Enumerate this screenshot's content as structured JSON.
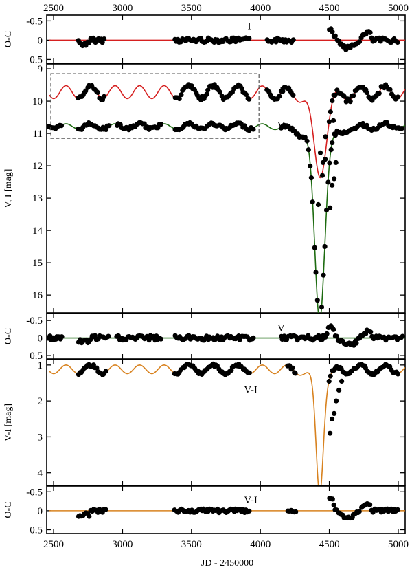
{
  "chart_data": {
    "type": "scatter",
    "colors": {
      "I": "#d62020",
      "V": "#1d6b10",
      "VI": "#d8821f",
      "points": "#000000"
    },
    "xaxis": {
      "label": "JD - 2450000",
      "range": [
        2450,
        5050
      ],
      "ticks": [
        2500,
        3000,
        3500,
        4000,
        4500,
        5000
      ],
      "tick_labels": [
        "2500",
        "3000",
        "3500",
        "4000",
        "4500",
        "5000"
      ]
    },
    "panels": [
      {
        "id": "oc_i",
        "ylabel": "O-C",
        "ylim": [
          -0.65,
          0.6
        ],
        "ticks": [
          -0.5,
          0,
          0.5
        ],
        "tick_labels": [
          "-0.5",
          "0",
          "0.5"
        ],
        "series_label": "I",
        "series_label_pos": [
          3920,
          -0.28
        ]
      },
      {
        "id": "main",
        "ylabel": "V, I [mag]",
        "ylim": [
          8.85,
          16.55
        ],
        "ticks": [
          9,
          10,
          11,
          12,
          13,
          14,
          15,
          16
        ],
        "tick_labels": [
          "9",
          "10",
          "11",
          "12",
          "13",
          "14",
          "15",
          "16"
        ],
        "series_labels": [
          {
            "text": "I",
            "pos": [
              4150,
              9.75
            ]
          },
          {
            "text": "V",
            "pos": [
              4150,
              10.85
            ]
          }
        ],
        "highlight_box": {
          "x": [
            2480,
            3990
          ],
          "y": [
            9.15,
            11.15
          ]
        }
      },
      {
        "id": "oc_v",
        "ylabel": "O-C",
        "ylim": [
          -0.7,
          0.6
        ],
        "ticks": [
          -0.5,
          0,
          0.5
        ],
        "tick_labels": [
          "-0.5",
          "0",
          "0.5"
        ],
        "series_label": "V",
        "series_label_pos": [
          4150,
          -0.2
        ]
      },
      {
        "id": "vi",
        "ylabel": "V-I [mag]",
        "ylim": [
          0.85,
          4.35
        ],
        "ticks": [
          1,
          2,
          3,
          4
        ],
        "tick_labels": [
          "1",
          "2",
          "3",
          "4"
        ],
        "series_label": "V-I",
        "series_label_pos": [
          3930,
          1.78
        ]
      },
      {
        "id": "oc_vi",
        "ylabel": "O-C",
        "ylim": [
          -0.65,
          0.6
        ],
        "ticks": [
          -0.5,
          0,
          0.5
        ],
        "tick_labels": [
          "-0.5",
          "0",
          "0.5"
        ],
        "series_label": "V-I",
        "series_label_pos": [
          3930,
          -0.2
        ]
      }
    ],
    "model": {
      "description": "Periodic variation with a deep eclipse",
      "x_start": 2470,
      "x_end": 5050,
      "period": 178,
      "phase_ref": 2590,
      "eclipse_center": 4430,
      "I": {
        "base": 9.72,
        "amp": 0.2,
        "eclipse_depth": 2.38,
        "eclipse_width": 45,
        "shelf_depth": 0.15,
        "shelf_width": 170
      },
      "V": {
        "base": 10.78,
        "amp": 0.08,
        "eclipse_depth": 5.55,
        "eclipse_width": 36,
        "shelf_depth": 0.4,
        "shelf_width": 130
      },
      "VI": {
        "base": 1.12,
        "amp": 0.12,
        "eclipse_depth": 3.1,
        "eclipse_width": 26,
        "shelf_depth": 0.3,
        "shelf_width": 75
      }
    },
    "observations": {
      "I_ranges": [
        [
          2680,
          2870
        ],
        [
          3380,
          3920
        ],
        [
          4050,
          4240
        ],
        [
          4500,
          5000
        ]
      ],
      "V_ranges": [
        [
          2460,
          2560
        ],
        [
          2680,
          2900
        ],
        [
          2960,
          3280
        ],
        [
          3380,
          3960
        ],
        [
          4150,
          4500
        ],
        [
          4500,
          5030
        ]
      ],
      "VI_ranges": [
        [
          2680,
          2880
        ],
        [
          3380,
          3920
        ],
        [
          4200,
          4260
        ],
        [
          4500,
          5000
        ]
      ],
      "step": 11,
      "V_eclipse_points": [
        [
          4420,
          13.2
        ],
        [
          4450,
          12.3
        ],
        [
          4470,
          11.8
        ],
        [
          4505,
          13.3
        ],
        [
          4520,
          12.6
        ],
        [
          4535,
          12.4
        ],
        [
          4548,
          11.9
        ]
      ],
      "I_eclipse_points": [
        [
          4435,
          11.6
        ],
        [
          4455,
          11.9
        ],
        [
          4472,
          11.1
        ],
        [
          4530,
          10.6
        ]
      ],
      "VI_eclipse_points": [
        [
          4505,
          2.9
        ],
        [
          4520,
          2.5
        ],
        [
          4535,
          2.35
        ],
        [
          4550,
          2.0
        ],
        [
          4570,
          1.7
        ],
        [
          4590,
          1.45
        ]
      ]
    }
  }
}
